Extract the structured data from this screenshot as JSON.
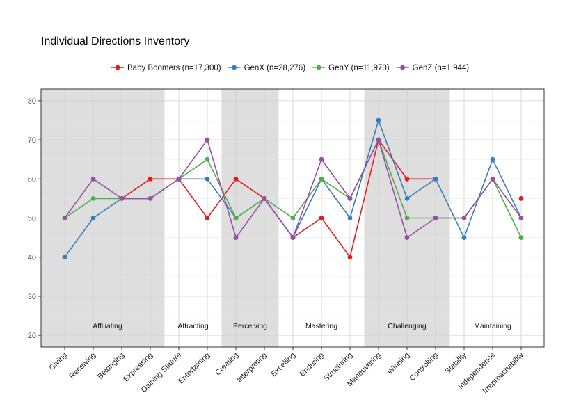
{
  "chart_data": {
    "type": "line",
    "title": "Individual Directions Inventory",
    "xlabel": "",
    "ylabel": "",
    "ylim": [
      17,
      83
    ],
    "yticks": [
      20,
      30,
      40,
      50,
      60,
      70,
      80
    ],
    "reference_line": 50,
    "grid": true,
    "legend_position": "top",
    "categories": [
      "Giving",
      "Receiving",
      "Belonging",
      "Expressing",
      "Gaining Stature",
      "Entertaining",
      "Creating",
      "Interpreting",
      "Excelling",
      "Enduring",
      "Structuring",
      "Maneuvering",
      "Winning",
      "Controlling",
      "Stability",
      "Independence",
      "Irreproachability"
    ],
    "groups": [
      {
        "label": "Affiliating",
        "start": 0,
        "end": 3,
        "shaded": true
      },
      {
        "label": "Attracting",
        "start": 4,
        "end": 5,
        "shaded": false
      },
      {
        "label": "Perceiving",
        "start": 6,
        "end": 7,
        "shaded": true
      },
      {
        "label": "Mastering",
        "start": 8,
        "end": 10,
        "shaded": false
      },
      {
        "label": "Challenging",
        "start": 11,
        "end": 13,
        "shaded": true
      },
      {
        "label": "Maintaining",
        "start": 14,
        "end": 16,
        "shaded": false
      }
    ],
    "series": [
      {
        "name": "Baby Boomers (n=17,300)",
        "color": "#e41a1c",
        "values": [
          null,
          null,
          55,
          60,
          60,
          50,
          60,
          55,
          45,
          50,
          40,
          70,
          60,
          60,
          null,
          null,
          55
        ]
      },
      {
        "name": "GenX (n=28,276)",
        "color": "#377eb8",
        "values": [
          40,
          50,
          55,
          55,
          60,
          60,
          50,
          55,
          45,
          60,
          50,
          75,
          55,
          60,
          45,
          65,
          50
        ]
      },
      {
        "name": "GenY (n=11,970)",
        "color": "#4daf4a",
        "values": [
          50,
          55,
          55,
          55,
          60,
          65,
          50,
          55,
          50,
          60,
          55,
          70,
          50,
          50,
          50,
          60,
          45
        ]
      },
      {
        "name": "GenZ (n=1,944)",
        "color": "#984ea3",
        "values": [
          50,
          60,
          55,
          55,
          60,
          70,
          45,
          55,
          45,
          65,
          55,
          70,
          45,
          50,
          50,
          60,
          50
        ]
      }
    ]
  }
}
